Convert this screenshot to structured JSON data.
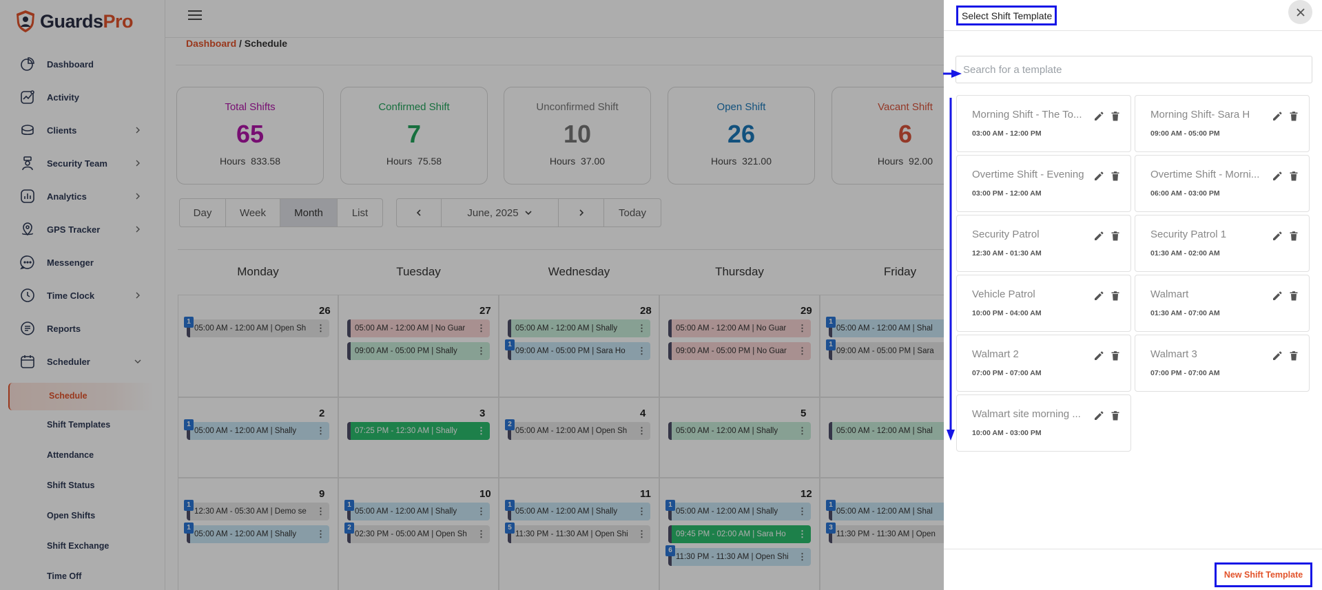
{
  "brand": {
    "part1": "Guards",
    "part2": "Pro"
  },
  "sidebar": {
    "items": [
      {
        "label": "Dashboard"
      },
      {
        "label": "Activity"
      },
      {
        "label": "Clients"
      },
      {
        "label": "Security Team"
      },
      {
        "label": "Analytics"
      },
      {
        "label": "GPS Tracker"
      },
      {
        "label": "Messenger"
      },
      {
        "label": "Time Clock"
      },
      {
        "label": "Reports"
      },
      {
        "label": "Scheduler"
      }
    ],
    "sub_items": [
      {
        "label": "Schedule"
      },
      {
        "label": "Shift Templates"
      },
      {
        "label": "Attendance"
      },
      {
        "label": "Shift Status"
      },
      {
        "label": "Open Shifts"
      },
      {
        "label": "Shift Exchange"
      },
      {
        "label": "Time Off"
      }
    ]
  },
  "breadcrumb": {
    "root": "Dashboard",
    "sep": " / ",
    "current": "Schedule"
  },
  "stats": [
    {
      "title": "Total Shifts",
      "value": "65",
      "hours_label": "Hours",
      "hours": "833.58",
      "color": "#b016a8"
    },
    {
      "title": "Confirmed Shift",
      "value": "7",
      "hours_label": "Hours",
      "hours": "75.58",
      "color": "#23a45c"
    },
    {
      "title": "Unconfirmed Shift",
      "value": "10",
      "hours_label": "Hours",
      "hours": "37.00",
      "color": "#777777"
    },
    {
      "title": "Open Shift",
      "value": "26",
      "hours_label": "Hours",
      "hours": "321.00",
      "color": "#1b78b8"
    },
    {
      "title": "Vacant Shift",
      "value": "6",
      "hours_label": "Hours",
      "hours": "92.00",
      "color": "#d9533a"
    }
  ],
  "views": [
    "Day",
    "Week",
    "Month",
    "List"
  ],
  "nav": {
    "month": "June, 2025",
    "today": "Today"
  },
  "calendar": {
    "days": [
      "Monday",
      "Tuesday",
      "Wednesday",
      "Thursday",
      "Friday"
    ],
    "weeks": [
      [
        {
          "date": "26",
          "events": [
            {
              "text": "05:00 AM - 12:00 AM | Open Sh",
              "color": "grey",
              "badge": "1"
            }
          ]
        },
        {
          "date": "27",
          "events": [
            {
              "text": "05:00 AM - 12:00 AM | No Guar",
              "color": "red",
              "badge": ""
            },
            {
              "text": "09:00 AM - 05:00 PM | Shally",
              "color": "green",
              "badge": ""
            }
          ]
        },
        {
          "date": "28",
          "events": [
            {
              "text": "05:00 AM - 12:00 AM | Shally",
              "color": "green",
              "badge": ""
            },
            {
              "text": "09:00 AM - 05:00 PM | Sara Ho",
              "color": "blue",
              "badge": "1"
            }
          ]
        },
        {
          "date": "29",
          "events": [
            {
              "text": "05:00 AM - 12:00 AM | No Guar",
              "color": "red",
              "badge": ""
            },
            {
              "text": "09:00 AM - 05:00 PM | No Guar",
              "color": "red",
              "badge": ""
            }
          ]
        },
        {
          "date": "",
          "events": [
            {
              "text": "05:00 AM - 12:00 AM | Shal",
              "color": "blue",
              "badge": "1"
            },
            {
              "text": "09:00 AM - 05:00 PM | Sara",
              "color": "grey",
              "badge": "1"
            }
          ]
        }
      ],
      [
        {
          "date": "2",
          "events": [
            {
              "text": "05:00 AM - 12:00 AM | Shally",
              "color": "blue",
              "badge": "1"
            }
          ]
        },
        {
          "date": "3",
          "events": [
            {
              "text": "07:25 PM - 12:30 AM | Shally",
              "color": "dgreen",
              "badge": ""
            }
          ]
        },
        {
          "date": "4",
          "events": [
            {
              "text": "05:00 AM - 12:00 AM | Open Sh",
              "color": "grey",
              "badge": "2"
            }
          ]
        },
        {
          "date": "5",
          "events": [
            {
              "text": "05:00 AM - 12:00 AM | Shally",
              "color": "green",
              "badge": ""
            }
          ]
        },
        {
          "date": "",
          "events": [
            {
              "text": "05:00 AM - 12:00 AM | Shal",
              "color": "green",
              "badge": ""
            }
          ]
        }
      ],
      [
        {
          "date": "9",
          "events": [
            {
              "text": "12:30 AM - 05:30 AM | Demo se",
              "color": "grey",
              "badge": "1"
            },
            {
              "text": "05:00 AM - 12:00 AM | Shally",
              "color": "blue",
              "badge": "1"
            }
          ]
        },
        {
          "date": "10",
          "events": [
            {
              "text": "05:00 AM - 12:00 AM | Shally",
              "color": "blue",
              "badge": "1"
            },
            {
              "text": "02:30 PM - 05:00 AM | Open Sh",
              "color": "grey",
              "badge": "2"
            }
          ]
        },
        {
          "date": "11",
          "events": [
            {
              "text": "05:00 AM - 12:00 AM | Shally",
              "color": "blue",
              "badge": "1"
            },
            {
              "text": "11:30 PM - 11:30 AM | Open Shi",
              "color": "grey",
              "badge": "5"
            }
          ]
        },
        {
          "date": "12",
          "events": [
            {
              "text": "05:00 AM - 12:00 AM | Shally",
              "color": "blue",
              "badge": "1"
            },
            {
              "text": "09:45 PM - 02:00 AM | Sara Ho",
              "color": "dgreen",
              "badge": ""
            },
            {
              "text": "11:30 PM - 11:30 AM | Open Shi",
              "color": "blue",
              "badge": "6"
            }
          ]
        },
        {
          "date": "",
          "events": [
            {
              "text": "05:00 AM - 12:00 AM | Shal",
              "color": "blue",
              "badge": "1"
            },
            {
              "text": "11:30 PM - 11:30 AM | Open",
              "color": "grey",
              "badge": "3"
            }
          ]
        }
      ]
    ]
  },
  "drawer": {
    "title": "Select Shift Template",
    "search_placeholder": "Search for a template",
    "templates": [
      {
        "name": "Morning Shift - The To...",
        "time": "03:00 AM - 12:00 PM"
      },
      {
        "name": "Morning Shift- Sara H",
        "time": "09:00 AM - 05:00 PM"
      },
      {
        "name": "Overtime Shift - Evening",
        "time": "03:00 PM - 12:00 AM"
      },
      {
        "name": "Overtime Shift - Morni...",
        "time": "06:00 AM - 03:00 PM"
      },
      {
        "name": "Security Patrol",
        "time": "12:30 AM - 01:30 AM"
      },
      {
        "name": "Security Patrol 1",
        "time": "01:30 AM - 02:00 AM"
      },
      {
        "name": "Vehicle Patrol",
        "time": "10:00 PM - 04:00 AM"
      },
      {
        "name": "Walmart",
        "time": "01:30 AM - 07:00 AM"
      },
      {
        "name": "Walmart 2",
        "time": "07:00 PM - 07:00 AM"
      },
      {
        "name": "Walmart 3",
        "time": "07:00 PM - 07:00 AM"
      },
      {
        "name": "Walmart site morning ...",
        "time": "10:00 AM - 03:00 PM"
      }
    ],
    "new_button": "New Shift Template"
  },
  "icons": {
    "close": "close-icon",
    "edit": "pencil-icon",
    "delete": "trash-icon",
    "menu": "hamburger-icon"
  },
  "colors": {
    "accent": "#e2532b",
    "annotation": "#1616e6"
  }
}
